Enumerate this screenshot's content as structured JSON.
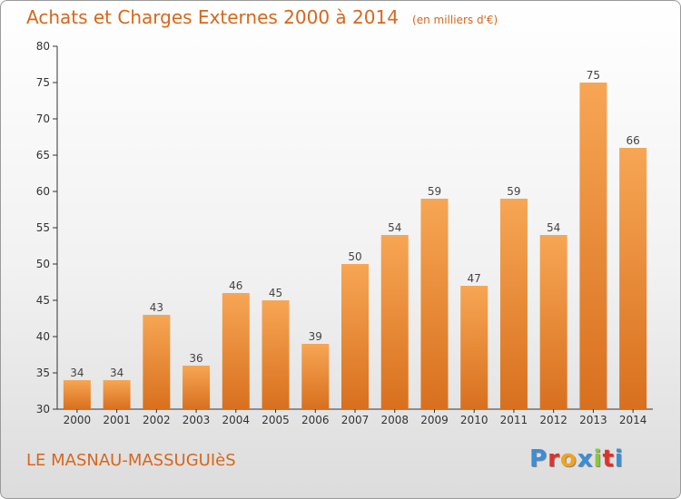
{
  "header": {
    "title": "Achats et Charges Externes 2000 à 2014",
    "units": "(en milliers d'€)"
  },
  "footer": {
    "commune": "LE MASNAU-MASSUGUIèS",
    "logo_letters": [
      "P",
      "r",
      "o",
      "x",
      "i",
      "t",
      "i"
    ],
    "logo_colors": [
      "#3a8ed6",
      "#e0312a",
      "#f2a21b",
      "#3a8ed6",
      "#8cc63f",
      "#e0312a",
      "#3a8ed6"
    ]
  },
  "chart_data": {
    "type": "bar",
    "categories": [
      "2000",
      "2001",
      "2002",
      "2003",
      "2004",
      "2005",
      "2006",
      "2007",
      "2008",
      "2009",
      "2010",
      "2011",
      "2012",
      "2013",
      "2014"
    ],
    "values": [
      34,
      34,
      43,
      36,
      46,
      45,
      39,
      50,
      54,
      59,
      47,
      59,
      54,
      75,
      66
    ],
    "ylim": [
      30,
      80
    ],
    "yticks": [
      30,
      35,
      40,
      45,
      50,
      55,
      60,
      65,
      70,
      75,
      80
    ],
    "grid": false,
    "bar_color_top": "#f7a654",
    "bar_color_bottom": "#d8701e",
    "label_color": "#444444"
  }
}
